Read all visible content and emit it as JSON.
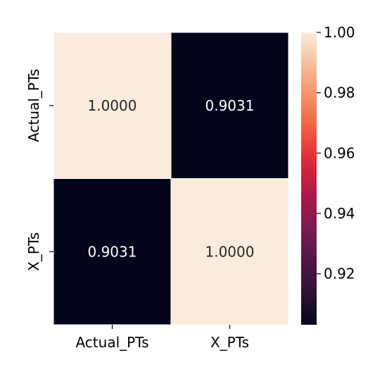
{
  "chart_data": {
    "type": "heatmap",
    "title": "",
    "xlabel": "",
    "ylabel": "",
    "x_categories": [
      "Actual_PTs",
      "X_PTs"
    ],
    "y_categories": [
      "Actual_PTs",
      "X_PTs"
    ],
    "matrix": [
      [
        1.0,
        0.9031
      ],
      [
        0.9031,
        1.0
      ]
    ],
    "cell_labels": [
      [
        "1.0000",
        "0.9031"
      ],
      [
        "0.9031",
        "1.0000"
      ]
    ],
    "colormap": "rocket",
    "color_range": [
      0.9031,
      1.0
    ],
    "colorbar": {
      "ticks": [
        0.92,
        0.94,
        0.96,
        0.98,
        1.0
      ],
      "tick_labels": [
        "0.92",
        "0.94",
        "0.96",
        "0.98",
        "1.00"
      ]
    },
    "colors": {
      "low": "#03051a",
      "high": "#faebdd",
      "cell_separator": "#ffffff"
    },
    "label_colors": {
      "on_light": "#262626",
      "on_dark": "#ffffff"
    }
  }
}
